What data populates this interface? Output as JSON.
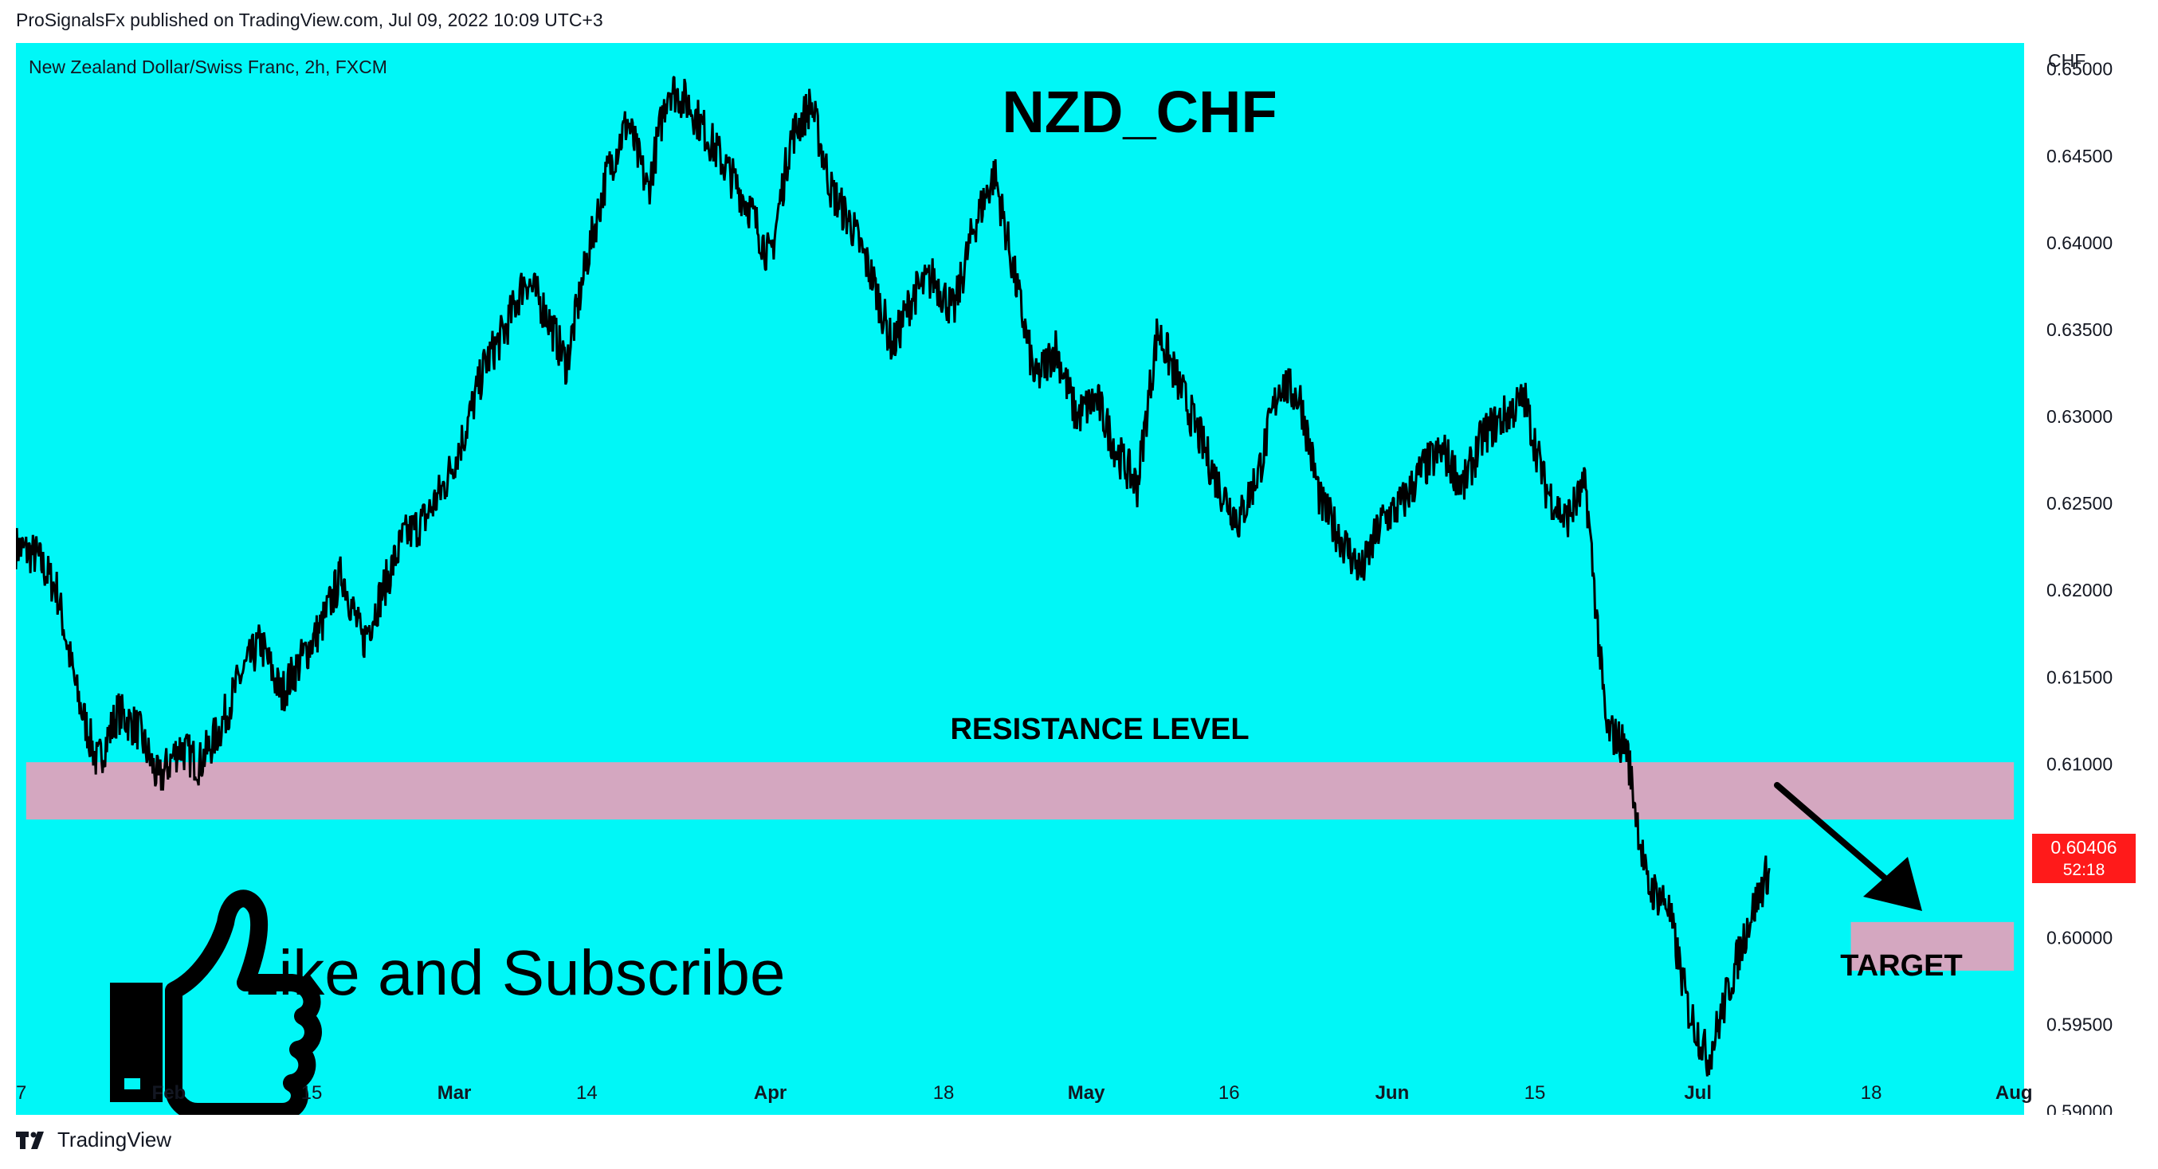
{
  "header": {
    "published": "ProSignalsFx published on TradingView.com, Jul 09, 2022 10:09 UTC+3"
  },
  "footer": {
    "brand": "TradingView",
    "logo_icon": "tradingview-logo-icon"
  },
  "colors": {
    "background": "#00f7f7",
    "candles": "#000000",
    "zone": "#d4a7c0",
    "price_tag": "#ff1a1a",
    "text": "#131722"
  },
  "chart_data": {
    "type": "line",
    "symbol_label": "New Zealand Dollar/Swiss Franc, 2h, FXCM",
    "title": "NZD_CHF",
    "currency": "CHF",
    "x_ticks": [
      "7",
      "Feb",
      "15",
      "Mar",
      "14",
      "Apr",
      "18",
      "May",
      "16",
      "Jun",
      "15",
      "Jul",
      "18",
      "Aug"
    ],
    "x_tick_dates": [
      "2022-01-17",
      "2022-02-01",
      "2022-02-15",
      "2022-03-01",
      "2022-03-14",
      "2022-04-01",
      "2022-04-18",
      "2022-05-02",
      "2022-05-16",
      "2022-06-01",
      "2022-06-15",
      "2022-07-01",
      "2022-07-18",
      "2022-08-01"
    ],
    "x_range": [
      "2022-01-17",
      "2022-08-02"
    ],
    "y_ticks": [
      0.59,
      0.595,
      0.6,
      0.605,
      0.61,
      0.615,
      0.62,
      0.625,
      0.63,
      0.635,
      0.64,
      0.645,
      0.65
    ],
    "y_tick_labels": [
      "0.59000",
      "0.59500",
      "0.60000",
      "0.60500",
      "0.61000",
      "0.61500",
      "0.62000",
      "0.62500",
      "0.63000",
      "0.63500",
      "0.64000",
      "0.64500",
      "0.65000"
    ],
    "y_range": [
      0.5898,
      0.6515
    ],
    "series": [
      {
        "dates": [
          "2022-01-17",
          "2022-01-19",
          "2022-01-21",
          "2022-01-23",
          "2022-01-25",
          "2022-01-27",
          "2022-01-29",
          "2022-01-31",
          "2022-02-02",
          "2022-02-04",
          "2022-02-06",
          "2022-02-08",
          "2022-02-10",
          "2022-02-12",
          "2022-02-14",
          "2022-02-16",
          "2022-02-18",
          "2022-02-20",
          "2022-02-22",
          "2022-02-24",
          "2022-02-26",
          "2022-02-28",
          "2022-03-02",
          "2022-03-04",
          "2022-03-06",
          "2022-03-08",
          "2022-03-10",
          "2022-03-12",
          "2022-03-14",
          "2022-03-16",
          "2022-03-18",
          "2022-03-20",
          "2022-03-22",
          "2022-03-24",
          "2022-03-26",
          "2022-03-28",
          "2022-03-30",
          "2022-04-01",
          "2022-04-03",
          "2022-04-05",
          "2022-04-07",
          "2022-04-09",
          "2022-04-11",
          "2022-04-13",
          "2022-04-15",
          "2022-04-17",
          "2022-04-19",
          "2022-04-21",
          "2022-04-23",
          "2022-04-25",
          "2022-04-27",
          "2022-04-29",
          "2022-05-01",
          "2022-05-03",
          "2022-05-05",
          "2022-05-07",
          "2022-05-09",
          "2022-05-11",
          "2022-05-13",
          "2022-05-15",
          "2022-05-17",
          "2022-05-19",
          "2022-05-21",
          "2022-05-23",
          "2022-05-25",
          "2022-05-27",
          "2022-05-29",
          "2022-05-31",
          "2022-06-02",
          "2022-06-04",
          "2022-06-06",
          "2022-06-08",
          "2022-06-10",
          "2022-06-12",
          "2022-06-14",
          "2022-06-16",
          "2022-06-18",
          "2022-06-20",
          "2022-06-22",
          "2022-06-24",
          "2022-06-26",
          "2022-06-28",
          "2022-06-30",
          "2022-07-02",
          "2022-07-04",
          "2022-07-06",
          "2022-07-08"
        ],
        "close": [
          0.6225,
          0.622,
          0.62,
          0.614,
          0.61,
          0.613,
          0.612,
          0.609,
          0.611,
          0.61,
          0.612,
          0.615,
          0.617,
          0.614,
          0.616,
          0.618,
          0.621,
          0.617,
          0.62,
          0.623,
          0.624,
          0.626,
          0.629,
          0.633,
          0.635,
          0.638,
          0.636,
          0.633,
          0.639,
          0.644,
          0.647,
          0.643,
          0.649,
          0.648,
          0.646,
          0.644,
          0.642,
          0.639,
          0.646,
          0.648,
          0.643,
          0.641,
          0.638,
          0.634,
          0.637,
          0.638,
          0.636,
          0.641,
          0.644,
          0.638,
          0.632,
          0.634,
          0.63,
          0.631,
          0.628,
          0.626,
          0.635,
          0.632,
          0.629,
          0.626,
          0.624,
          0.627,
          0.632,
          0.631,
          0.625,
          0.623,
          0.621,
          0.624,
          0.625,
          0.627,
          0.628,
          0.626,
          0.629,
          0.63,
          0.631,
          0.626,
          0.624,
          0.626,
          0.612,
          0.611,
          0.603,
          0.602,
          0.596,
          0.593,
          0.597,
          0.601,
          0.604
        ]
      }
    ],
    "last_price": "0.60406",
    "countdown": "52:18",
    "zones": [
      {
        "label": "RESISTANCE LEVEL",
        "from": "2022-01-18",
        "to": "2022-08-01",
        "y_low": 0.6068,
        "y_high": 0.6101
      },
      {
        "label": "TARGET",
        "from": "2022-07-16",
        "to": "2022-08-01",
        "y_low": 0.5981,
        "y_high": 0.6009
      }
    ],
    "grid": false,
    "legend": "none"
  },
  "overlay": {
    "cta_text": "Like and Subscribe",
    "cta_icon": "thumbs-up-icon",
    "arrow_icon": "arrow-down-right-icon"
  }
}
